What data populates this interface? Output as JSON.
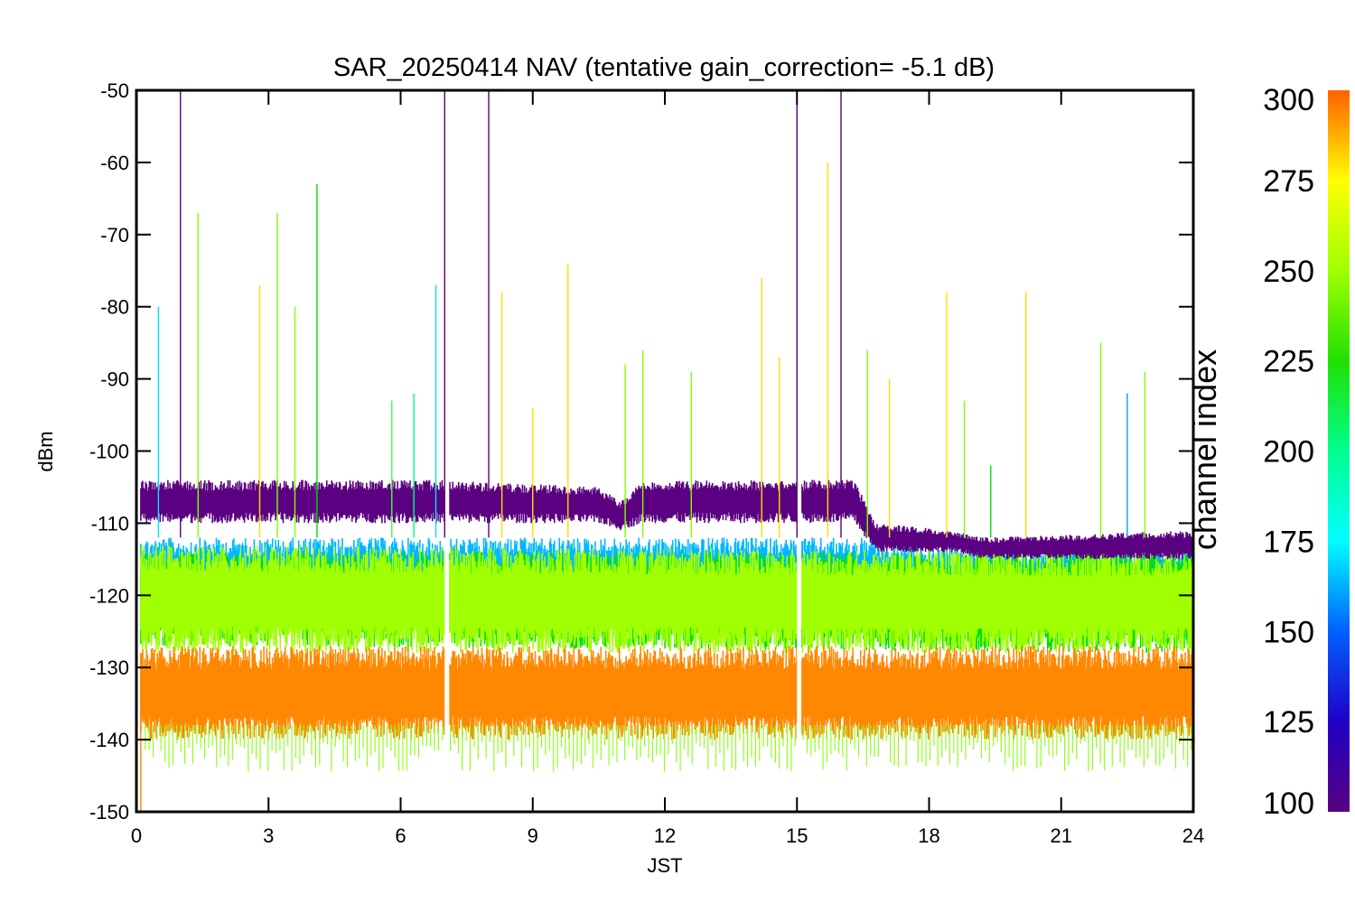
{
  "chart_data": {
    "type": "line",
    "title": "SAR_20250414 NAV (tentative gain_correction= -5.1 dB)",
    "xlabel": "JST",
    "ylabel": "dBm",
    "xlim": [
      0,
      24
    ],
    "ylim": [
      -150,
      -50
    ],
    "x_ticks": [
      "0",
      "3",
      "6",
      "9",
      "12",
      "15",
      "18",
      "21",
      "24"
    ],
    "x_tick_values": [
      0,
      3,
      6,
      9,
      12,
      15,
      18,
      21,
      24
    ],
    "y_ticks": [
      "-50",
      "-60",
      "-70",
      "-80",
      "-90",
      "-100",
      "-110",
      "-120",
      "-130",
      "-140",
      "-150"
    ],
    "y_tick_values": [
      -50,
      -60,
      -70,
      -80,
      -90,
      -100,
      -110,
      -120,
      -130,
      -140,
      -150
    ],
    "grid": false,
    "data_gaps_jst": [
      [
        7.0,
        7.1
      ],
      [
        15.0,
        15.1
      ]
    ],
    "series": [
      {
        "channel_index": 105,
        "color": "#5a0080",
        "band": [
          {
            "x": 0.1,
            "lo": -110,
            "hi": -104
          },
          {
            "x": 7.0,
            "lo": -110,
            "hi": -104
          },
          {
            "x": 10.5,
            "lo": -110,
            "hi": -105
          },
          {
            "x": 11.0,
            "lo": -111,
            "hi": -107
          },
          {
            "x": 11.5,
            "lo": -110,
            "hi": -104
          },
          {
            "x": 15.0,
            "lo": -110,
            "hi": -104
          },
          {
            "x": 16.3,
            "lo": -110,
            "hi": -104
          },
          {
            "x": 16.8,
            "lo": -114,
            "hi": -110
          },
          {
            "x": 18.5,
            "lo": -114,
            "hi": -111
          },
          {
            "x": 19.3,
            "lo": -115,
            "hi": -112
          },
          {
            "x": 24.0,
            "lo": -115,
            "hi": -111
          }
        ]
      },
      {
        "channel_index": 160,
        "color": "#00b8ff",
        "band": [
          {
            "x": 0.1,
            "lo": -123,
            "hi": -112
          },
          {
            "x": 16.6,
            "lo": -123,
            "hi": -112
          },
          {
            "x": 17.0,
            "lo": -125,
            "hi": -113
          },
          {
            "x": 24.0,
            "lo": -125,
            "hi": -113
          }
        ]
      },
      {
        "channel_index": 230,
        "color": "#00e000",
        "band": [
          {
            "x": 0.1,
            "lo": -127,
            "hi": -114
          },
          {
            "x": 24.0,
            "lo": -128,
            "hi": -114
          }
        ]
      },
      {
        "channel_index": 255,
        "color": "#a0ff00",
        "band": [
          {
            "x": 0.1,
            "lo": -128,
            "hi": -113
          },
          {
            "x": 24.0,
            "lo": -128,
            "hi": -114
          }
        ]
      },
      {
        "channel_index": 285,
        "color": "#ff8800",
        "band": [
          {
            "x": 0.1,
            "lo": -140,
            "hi": -127
          },
          {
            "x": 24.0,
            "lo": -140,
            "hi": -127
          }
        ]
      }
    ],
    "spikes": [
      {
        "x": 0.1,
        "y": -150,
        "color": "#ff8800"
      },
      {
        "x": 0.5,
        "y": -80,
        "color": "#00e0ff"
      },
      {
        "x": 1.0,
        "y": -50,
        "color": "#5a0080"
      },
      {
        "x": 1.4,
        "y": -67,
        "color": "#80ff00"
      },
      {
        "x": 2.8,
        "y": -77,
        "color": "#ffdd00"
      },
      {
        "x": 3.2,
        "y": -67,
        "color": "#80ff00"
      },
      {
        "x": 3.6,
        "y": -80,
        "color": "#80ff00"
      },
      {
        "x": 4.1,
        "y": -63,
        "color": "#00e000"
      },
      {
        "x": 5.8,
        "y": -93,
        "color": "#40ff40"
      },
      {
        "x": 6.3,
        "y": -92,
        "color": "#00ff80"
      },
      {
        "x": 6.8,
        "y": -77,
        "color": "#00e0ff"
      },
      {
        "x": 7.0,
        "y": -50,
        "color": "#5a0080"
      },
      {
        "x": 8.0,
        "y": -50,
        "color": "#5a0080"
      },
      {
        "x": 8.3,
        "y": -78,
        "color": "#ffdd00"
      },
      {
        "x": 9.0,
        "y": -94,
        "color": "#ffdd00"
      },
      {
        "x": 9.8,
        "y": -74,
        "color": "#ffdd00"
      },
      {
        "x": 11.1,
        "y": -88,
        "color": "#80ff00"
      },
      {
        "x": 11.5,
        "y": -86,
        "color": "#80ff00"
      },
      {
        "x": 12.6,
        "y": -89,
        "color": "#80ff00"
      },
      {
        "x": 14.2,
        "y": -76,
        "color": "#ffdd00"
      },
      {
        "x": 14.6,
        "y": -87,
        "color": "#ffdd00"
      },
      {
        "x": 15.0,
        "y": -50,
        "color": "#5a0080"
      },
      {
        "x": 15.7,
        "y": -60,
        "color": "#ffdd00"
      },
      {
        "x": 16.0,
        "y": -50,
        "color": "#5a0080"
      },
      {
        "x": 16.6,
        "y": -86,
        "color": "#80ff00"
      },
      {
        "x": 17.1,
        "y": -90,
        "color": "#ffdd00"
      },
      {
        "x": 18.4,
        "y": -78,
        "color": "#ffdd00"
      },
      {
        "x": 18.8,
        "y": -93,
        "color": "#80ff00"
      },
      {
        "x": 19.4,
        "y": -102,
        "color": "#00e000"
      },
      {
        "x": 20.2,
        "y": -78,
        "color": "#ffdd00"
      },
      {
        "x": 21.9,
        "y": -85,
        "color": "#80ff00"
      },
      {
        "x": 22.5,
        "y": -92,
        "color": "#00a0ff"
      },
      {
        "x": 22.9,
        "y": -89,
        "color": "#80ff00"
      }
    ]
  },
  "colorbar": {
    "title": "channel index",
    "range": [
      100,
      300
    ],
    "ticks": [
      "100",
      "125",
      "150",
      "175",
      "200",
      "225",
      "250",
      "275",
      "300"
    ],
    "tick_values": [
      100,
      125,
      150,
      175,
      200,
      225,
      250,
      275,
      300
    ],
    "stops": [
      {
        "value": 100,
        "color": "#5a0080"
      },
      {
        "value": 125,
        "color": "#2000c8"
      },
      {
        "value": 150,
        "color": "#0060ff"
      },
      {
        "value": 175,
        "color": "#00ffff"
      },
      {
        "value": 200,
        "color": "#00ff90"
      },
      {
        "value": 225,
        "color": "#20e000"
      },
      {
        "value": 250,
        "color": "#a0ff00"
      },
      {
        "value": 275,
        "color": "#ffff00"
      },
      {
        "value": 300,
        "color": "#ff6000"
      }
    ]
  }
}
